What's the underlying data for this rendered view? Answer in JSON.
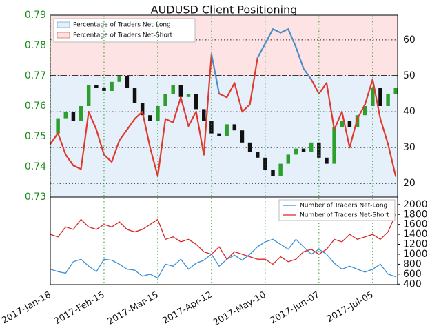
{
  "chart_data": [
    {
      "type": "combo",
      "title": "AUDUSD Client Positioning",
      "x": [
        "2017-01-18",
        "2017-01-22",
        "2017-01-26",
        "2017-01-30",
        "2017-02-03",
        "2017-02-07",
        "2017-02-11",
        "2017-02-15",
        "2017-02-19",
        "2017-02-23",
        "2017-02-27",
        "2017-03-03",
        "2017-03-07",
        "2017-03-11",
        "2017-03-15",
        "2017-03-19",
        "2017-03-23",
        "2017-03-27",
        "2017-03-31",
        "2017-04-04",
        "2017-04-08",
        "2017-04-12",
        "2017-04-16",
        "2017-04-20",
        "2017-04-24",
        "2017-04-28",
        "2017-05-02",
        "2017-05-06",
        "2017-05-10",
        "2017-05-14",
        "2017-05-18",
        "2017-05-22",
        "2017-05-26",
        "2017-05-30",
        "2017-06-03",
        "2017-06-07",
        "2017-06-11",
        "2017-06-15",
        "2017-06-19",
        "2017-06-23",
        "2017-06-27",
        "2017-07-01",
        "2017-07-05",
        "2017-07-09",
        "2017-07-13",
        "2017-07-17"
      ],
      "close": [
        0.751,
        0.756,
        0.758,
        0.755,
        0.76,
        0.767,
        0.766,
        0.765,
        0.768,
        0.77,
        0.766,
        0.761,
        0.757,
        0.755,
        0.76,
        0.764,
        0.767,
        0.763,
        0.764,
        0.759,
        0.755,
        0.751,
        0.75,
        0.754,
        0.752,
        0.748,
        0.745,
        0.743,
        0.739,
        0.737,
        0.741,
        0.744,
        0.746,
        0.745,
        0.748,
        0.743,
        0.741,
        0.753,
        0.755,
        0.753,
        0.757,
        0.76,
        0.766,
        0.76,
        0.764,
        0.766
      ],
      "up_color": "#2ca02c",
      "down_color": "#111111",
      "series": [
        {
          "name": "Percentage of Traders Net-Long",
          "color": "#4a90c8",
          "axis": "y2",
          "values": [
            31,
            34,
            28,
            25,
            24,
            40,
            35,
            28,
            26,
            32,
            35,
            38,
            40,
            30,
            22,
            38,
            37,
            44,
            36,
            40,
            28,
            56,
            45,
            44,
            48,
            40,
            42,
            55,
            59,
            63,
            62,
            63,
            58,
            52,
            49,
            45,
            48,
            35,
            40,
            30,
            38,
            42,
            49,
            38,
            31,
            22
          ]
        },
        {
          "name": "Percentage of Traders Net-Short",
          "color": "#e03a2f"
        }
      ],
      "fill_colors": [
        "#e6f0fa",
        "#fde3e3"
      ],
      "threshold": 50,
      "ylim": [
        0.73,
        0.79
      ],
      "yticks": [
        0.73,
        0.74,
        0.75,
        0.76,
        0.77,
        0.78,
        0.79
      ],
      "ytick_color": "#1a8a1a",
      "y2lim": [
        16.2,
        66.9
      ],
      "y2ticks": [
        20,
        30,
        40,
        50,
        60
      ],
      "xlim": [
        "2017-01-18",
        "2017-07-18"
      ],
      "legend": "upper left"
    },
    {
      "type": "line",
      "x": [
        "2017-01-18",
        "2017-01-22",
        "2017-01-26",
        "2017-01-30",
        "2017-02-03",
        "2017-02-07",
        "2017-02-11",
        "2017-02-15",
        "2017-02-19",
        "2017-02-23",
        "2017-02-27",
        "2017-03-03",
        "2017-03-07",
        "2017-03-11",
        "2017-03-15",
        "2017-03-19",
        "2017-03-23",
        "2017-03-27",
        "2017-03-31",
        "2017-04-04",
        "2017-04-08",
        "2017-04-12",
        "2017-04-16",
        "2017-04-20",
        "2017-04-24",
        "2017-04-28",
        "2017-05-02",
        "2017-05-06",
        "2017-05-10",
        "2017-05-14",
        "2017-05-18",
        "2017-05-22",
        "2017-05-26",
        "2017-05-30",
        "2017-06-03",
        "2017-06-07",
        "2017-06-11",
        "2017-06-15",
        "2017-06-19",
        "2017-06-23",
        "2017-06-27",
        "2017-07-01",
        "2017-07-05",
        "2017-07-09",
        "2017-07-13",
        "2017-07-17"
      ],
      "series": [
        {
          "name": "Number of Traders Net-Long",
          "color": "#3a8fd6",
          "values": [
            700,
            650,
            620,
            850,
            900,
            760,
            650,
            900,
            880,
            800,
            700,
            680,
            560,
            600,
            520,
            800,
            760,
            900,
            700,
            820,
            880,
            1000,
            760,
            900,
            980,
            880,
            1000,
            1150,
            1250,
            1300,
            1200,
            1100,
            1300,
            1150,
            1000,
            1100,
            1000,
            820,
            700,
            760,
            700,
            640,
            700,
            800,
            600,
            550
          ]
        },
        {
          "name": "Number of Traders Net-Short",
          "color": "#d62728",
          "values": [
            1400,
            1350,
            1550,
            1500,
            1700,
            1550,
            1500,
            1600,
            1550,
            1650,
            1500,
            1450,
            1500,
            1600,
            1700,
            1300,
            1350,
            1250,
            1300,
            1200,
            1050,
            1000,
            1150,
            900,
            1050,
            1000,
            950,
            900,
            900,
            800,
            950,
            850,
            900,
            1050,
            1100,
            1000,
            1100,
            1300,
            1250,
            1400,
            1300,
            1350,
            1400,
            1300,
            1450,
            1800
          ]
        }
      ],
      "ylim": [
        390,
        2150
      ],
      "yticks": [
        400,
        600,
        800,
        1000,
        1200,
        1400,
        1600,
        1800,
        2000
      ],
      "xlim": [
        "2017-01-18",
        "2017-07-18"
      ],
      "xticks": [
        {
          "value": "2017-01-18",
          "label": "2017-Jan-18"
        },
        {
          "value": "2017-02-15",
          "label": "2017-Feb-15"
        },
        {
          "value": "2017-03-15",
          "label": "2017-Mar-15"
        },
        {
          "value": "2017-04-12",
          "label": "2017-Apr-12"
        },
        {
          "value": "2017-05-10",
          "label": "2017-May-10"
        },
        {
          "value": "2017-06-07",
          "label": "2017-Jun-07"
        },
        {
          "value": "2017-07-05",
          "label": "2017-Jul-05"
        }
      ],
      "legend": "upper right"
    }
  ]
}
